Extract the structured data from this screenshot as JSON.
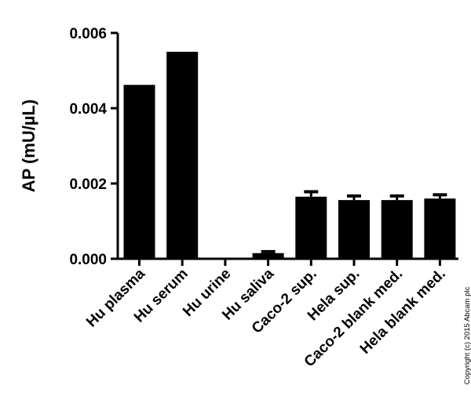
{
  "chart_data": {
    "type": "bar",
    "ylabel": "AP (mU/µL)",
    "categories": [
      "Hu plasma",
      "Hu serum",
      "Hu urine",
      "Hu saliva",
      "Caco-2 sup.",
      "Hela sup.",
      "Caco-2 blank med.",
      "Hela blank med."
    ],
    "values": [
      0.00462,
      0.0055,
      0.0,
      0.00015,
      0.00165,
      0.00156,
      0.00156,
      0.0016
    ],
    "errors": [
      0.0,
      0.0,
      0.0,
      4e-05,
      0.00013,
      0.00011,
      0.00011,
      0.0001
    ],
    "ylim": [
      0,
      0.006
    ],
    "yticks": [
      "0.000",
      "0.002",
      "0.004",
      "0.006"
    ],
    "ytick_values": [
      0,
      0.002,
      0.004,
      0.006
    ],
    "bar_color": "#000000",
    "grid": false
  },
  "copyright": "Copyright (c) 2015 Abcam plc"
}
